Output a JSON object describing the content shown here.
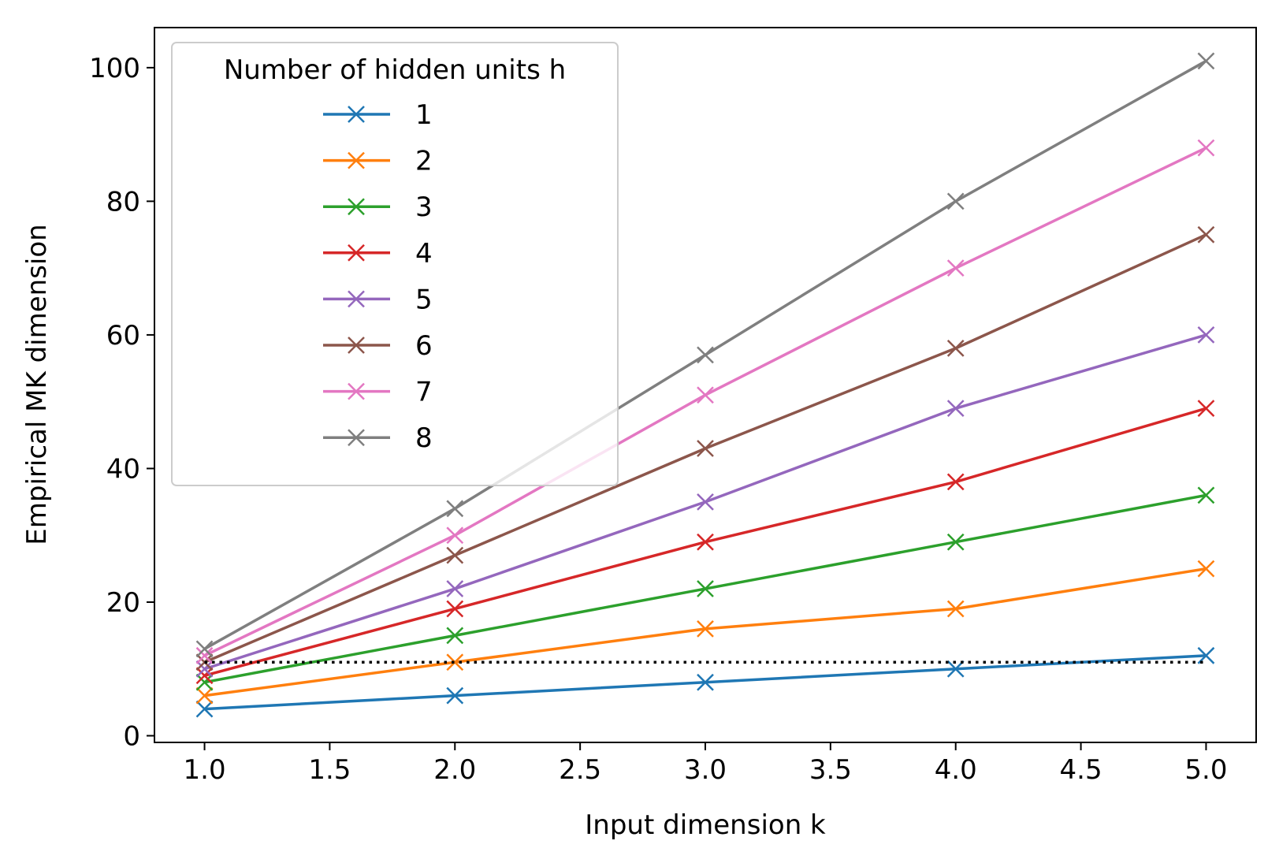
{
  "chart_data": {
    "type": "line",
    "xlabel": "Input dimension k",
    "ylabel": "Empirical MK dimension",
    "xlim": [
      0.8,
      5.2
    ],
    "ylim": [
      -1,
      106
    ],
    "xticks": [
      1.0,
      1.5,
      2.0,
      2.5,
      3.0,
      3.5,
      4.0,
      4.5,
      5.0
    ],
    "xtick_labels": [
      "1.0",
      "1.5",
      "2.0",
      "2.5",
      "3.0",
      "3.5",
      "4.0",
      "4.5",
      "5.0"
    ],
    "yticks": [
      0,
      20,
      40,
      60,
      80,
      100
    ],
    "ytick_labels": [
      "0",
      "20",
      "40",
      "60",
      "80",
      "100"
    ],
    "grid": false,
    "marker": "x",
    "legend": {
      "title": "Number of hidden units h",
      "placement": "upper-left"
    },
    "x": [
      1,
      2,
      3,
      4,
      5
    ],
    "series": [
      {
        "name": "1",
        "color": "#1f77b4",
        "values": [
          4,
          6,
          8,
          10,
          12
        ]
      },
      {
        "name": "2",
        "color": "#ff7f0e",
        "values": [
          6,
          11,
          16,
          19,
          25
        ]
      },
      {
        "name": "3",
        "color": "#2ca02c",
        "values": [
          8,
          15,
          22,
          29,
          36
        ]
      },
      {
        "name": "4",
        "color": "#d62728",
        "values": [
          9,
          19,
          29,
          38,
          49
        ]
      },
      {
        "name": "5",
        "color": "#9467bd",
        "values": [
          10,
          22,
          35,
          49,
          60
        ]
      },
      {
        "name": "6",
        "color": "#8c564b",
        "values": [
          11,
          27,
          43,
          58,
          75
        ]
      },
      {
        "name": "7",
        "color": "#e377c2",
        "values": [
          12,
          30,
          51,
          70,
          88
        ]
      },
      {
        "name": "8",
        "color": "#7f7f7f",
        "values": [
          13,
          34,
          57,
          80,
          101
        ]
      }
    ],
    "reference_line": {
      "y": 11,
      "x_range": [
        1,
        5
      ],
      "style": "dotted",
      "color": "#000000"
    }
  }
}
